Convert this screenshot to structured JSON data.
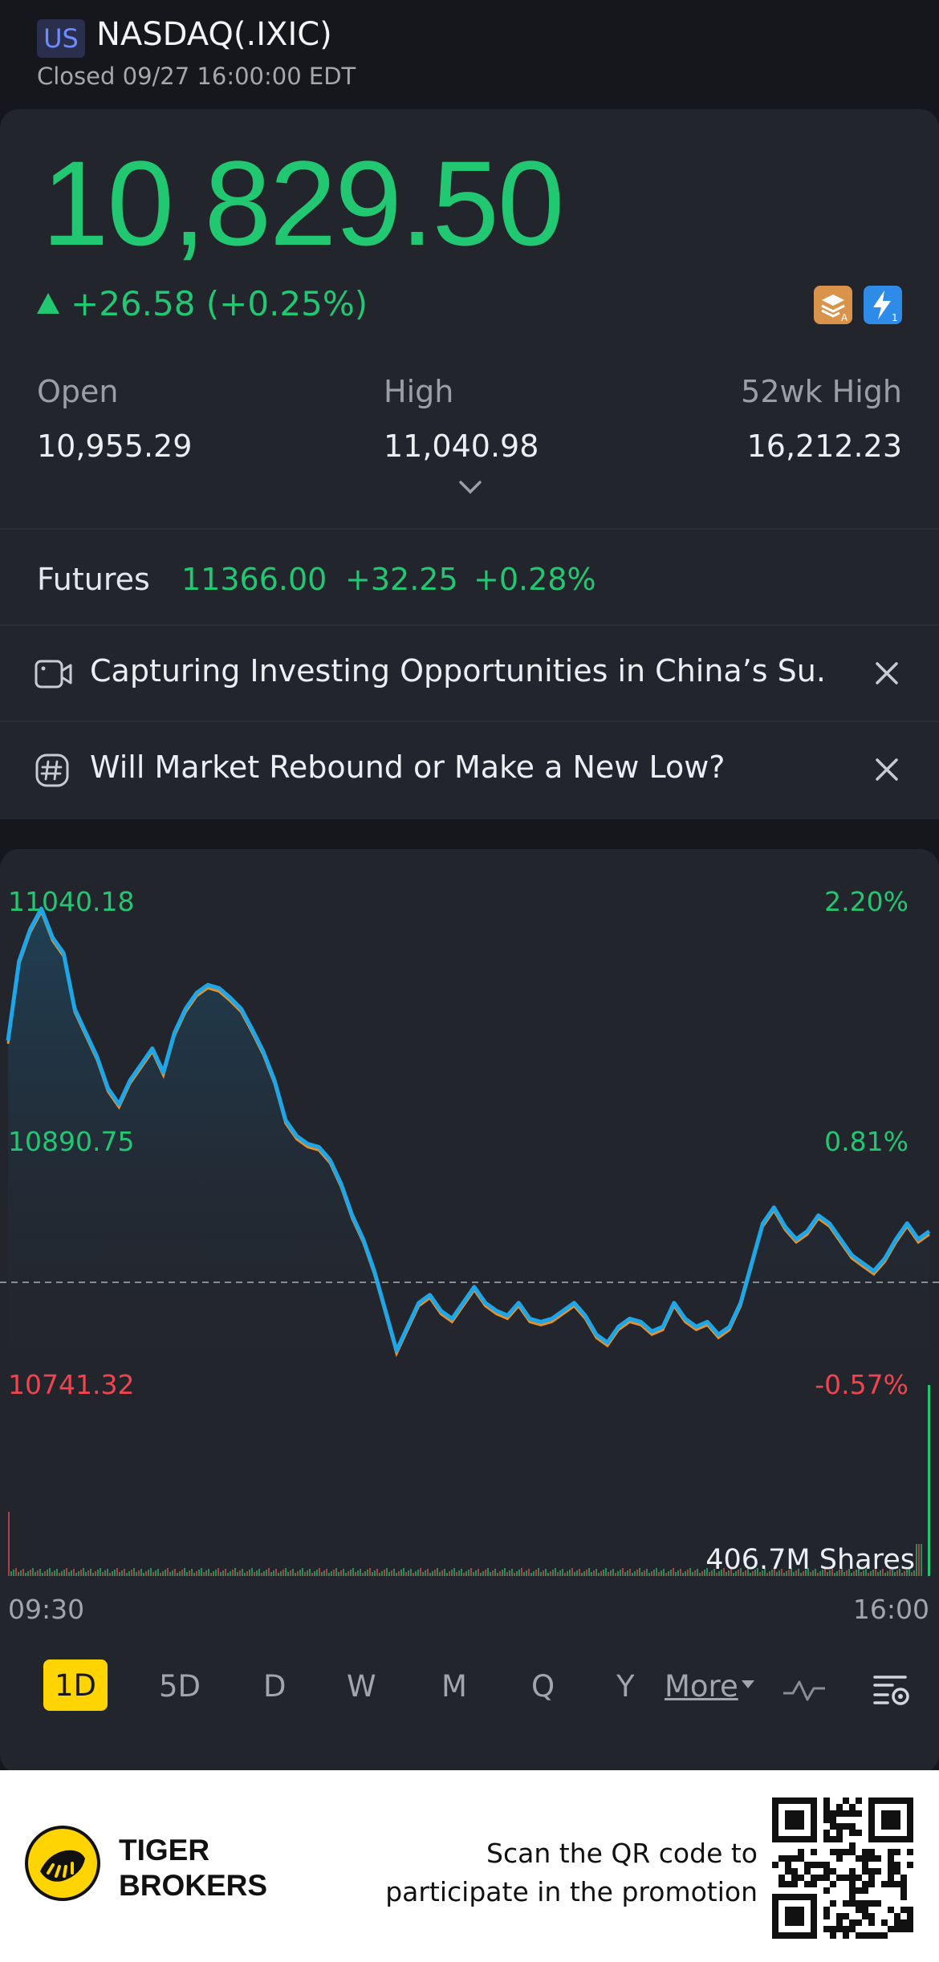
{
  "header": {
    "market": "US",
    "ticker": "NASDAQ(.IXIC)",
    "status": "Closed 09/27 16:00:00 EDT"
  },
  "quote": {
    "price": "10,829.50",
    "change": "+26.58 (+0.25%)",
    "up_color": "#22c771",
    "down_color": "#f0454f",
    "stats": [
      {
        "label": "Open",
        "value": "10,955.29"
      },
      {
        "label": "High",
        "value": "11,040.98"
      },
      {
        "label": "52wk High",
        "value": "16,212.23"
      }
    ]
  },
  "futures": {
    "label": "Futures",
    "price": "11366.00",
    "change": "+32.25",
    "change_pct": "+0.28%"
  },
  "news": [
    {
      "icon": "video-camera-icon",
      "text": "Capturing Investing Opportunities in China’s Su..."
    },
    {
      "icon": "hashtag-icon",
      "text": "Will Market Rebound or Make a New Low?"
    }
  ],
  "chart_data": {
    "type": "line",
    "title": "",
    "xlabel": "",
    "ylabel": "",
    "x_labels": [
      "09:30",
      "16:00"
    ],
    "y_labels_left": [
      "11040.18",
      "10890.75",
      "10741.32"
    ],
    "y_labels_right": [
      "2.20%",
      "0.81%",
      "-0.57%"
    ],
    "ylim": [
      10741.32,
      11040.18
    ],
    "reference_value": 10802.92,
    "volume_label": "406.7M Shares",
    "line_color": "#1ea7e8",
    "series": [
      {
        "values": [
          10955,
          11005,
          11025,
          11038,
          11020,
          11010,
          10975,
          10960,
          10945,
          10925,
          10915,
          10930,
          10940,
          10950,
          10935,
          10960,
          10975,
          10985,
          10990,
          10988,
          10982,
          10975,
          10962,
          10948,
          10930,
          10905,
          10895,
          10890,
          10888,
          10880,
          10865,
          10845,
          10830,
          10810,
          10785,
          10760,
          10775,
          10790,
          10795,
          10785,
          10780,
          10790,
          10800,
          10790,
          10785,
          10782,
          10790,
          10780,
          10778,
          10780,
          10785,
          10790,
          10782,
          10770,
          10765,
          10775,
          10780,
          10778,
          10772,
          10775,
          10790,
          10780,
          10775,
          10778,
          10770,
          10775,
          10790,
          10815,
          10840,
          10850,
          10838,
          10830,
          10835,
          10845,
          10840,
          10830,
          10820,
          10815,
          10810,
          10818,
          10830,
          10840,
          10830,
          10835
        ]
      }
    ]
  },
  "periods": {
    "items": [
      "1D",
      "5D",
      "D",
      "W",
      "M",
      "Q",
      "Y"
    ],
    "active": "1D",
    "more": "More"
  },
  "footer": {
    "brand_line1": "TIGER",
    "brand_line2": "BROKERS",
    "promo_line1": "Scan the QR code to",
    "promo_line2": "participate in the promotion"
  }
}
